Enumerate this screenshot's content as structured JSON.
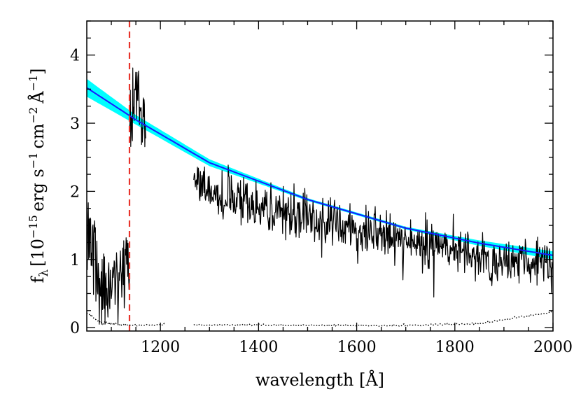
{
  "chart_data": {
    "type": "line",
    "xlabel": "wavelength [Å]",
    "ylabel": {
      "symbol": "f",
      "subscript": "λ",
      "open": "[10",
      "exp1": "−15",
      "unit1": "erg s",
      "exp2": "−1",
      "unit2": "cm",
      "exp3": "−2",
      "unit3": "Å",
      "exp4": "−1",
      "close": "]"
    },
    "xlim": [
      1050,
      2000
    ],
    "ylim": [
      -0.05,
      4.5
    ],
    "xticks": [
      1200,
      1400,
      1600,
      1800,
      2000
    ],
    "xtick_labels": [
      "1200",
      "1400",
      "1600",
      "1800",
      "2000"
    ],
    "yticks": [
      0,
      1,
      2,
      3,
      4
    ],
    "ytick_labels": [
      "0",
      "1",
      "2",
      "3",
      "4"
    ],
    "grid": false,
    "colors": {
      "spectrum": "#000000",
      "fit_line": "#1a1aff",
      "fit_band": "#00ffff",
      "marker": "#e8332a",
      "error": "#000000"
    },
    "vertical_marker": {
      "x": 1137,
      "style": "dashed"
    },
    "model_fit": {
      "x": [
        1050,
        1150,
        1300,
        1500,
        1700,
        1850,
        2000
      ],
      "y": [
        3.52,
        3.05,
        2.42,
        1.88,
        1.46,
        1.24,
        1.06
      ],
      "upper": [
        3.65,
        3.12,
        2.47,
        1.9,
        1.48,
        1.28,
        1.12
      ],
      "lower": [
        3.39,
        2.98,
        2.37,
        1.86,
        1.44,
        1.2,
        1.0
      ]
    },
    "series": [
      {
        "name": "flux",
        "segments": [
          {
            "x_start": 1050,
            "x_end": 1137,
            "points": 90,
            "noise": 0.45,
            "envelope": [
              [
                1050,
                1.3
              ],
              [
                1055,
                1.5
              ],
              [
                1065,
                1.1
              ],
              [
                1080,
                0.6
              ],
              [
                1095,
                0.5
              ],
              [
                1110,
                0.55
              ],
              [
                1120,
                0.75
              ],
              [
                1130,
                0.95
              ],
              [
                1137,
                0.85
              ]
            ]
          },
          {
            "x_start": 1137,
            "x_end": 1170,
            "points": 40,
            "noise": 0.35,
            "envelope": [
              [
                1137,
                2.9
              ],
              [
                1145,
                3.3
              ],
              [
                1152,
                3.4
              ],
              [
                1160,
                3.1
              ],
              [
                1170,
                2.9
              ]
            ]
          },
          {
            "x_start": 1268,
            "x_end": 2000,
            "points": 700,
            "noise": 0.28,
            "envelope": [
              [
                1268,
                2.1
              ],
              [
                1300,
                2.05
              ],
              [
                1400,
                1.75
              ],
              [
                1500,
                1.6
              ],
              [
                1600,
                1.45
              ],
              [
                1700,
                1.3
              ],
              [
                1800,
                1.15
              ],
              [
                1900,
                0.95
              ],
              [
                2000,
                0.95
              ]
            ]
          }
        ]
      },
      {
        "name": "error",
        "segments": [
          {
            "x_start": 1050,
            "x_end": 1137,
            "points": 60,
            "base": [
              [
                1050,
                0.2
              ],
              [
                1080,
                0.05
              ],
              [
                1137,
                0.02
              ]
            ],
            "noise": 0.03
          },
          {
            "x_start": 1137,
            "x_end": 1210,
            "points": 30,
            "base": [
              [
                1137,
                0.02
              ],
              [
                1210,
                0.03
              ]
            ],
            "noise": 0.02
          },
          {
            "x_start": 1268,
            "x_end": 2000,
            "points": 300,
            "base": [
              [
                1268,
                0.03
              ],
              [
                1700,
                0.02
              ],
              [
                1850,
                0.05
              ],
              [
                2000,
                0.22
              ]
            ],
            "noise": 0.02
          }
        ]
      }
    ]
  }
}
